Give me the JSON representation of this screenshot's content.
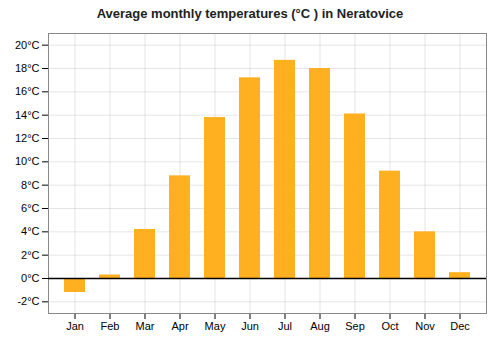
{
  "chart_data": {
    "type": "bar",
    "title": "Average monthly temperatures (°C ) in Neratovice",
    "categories": [
      "Jan",
      "Feb",
      "Mar",
      "Apr",
      "May",
      "Jun",
      "Jul",
      "Aug",
      "Sep",
      "Oct",
      "Nov",
      "Dec"
    ],
    "values": [
      -1.2,
      0.3,
      4.2,
      8.8,
      13.8,
      17.2,
      18.7,
      18.0,
      14.1,
      9.2,
      4.0,
      0.5
    ],
    "color": "#FFB020",
    "ylim": [
      -3,
      21
    ],
    "yticks": [
      {
        "value": -2,
        "label": "-2°C"
      },
      {
        "value": 0,
        "label": "0°C"
      },
      {
        "value": 2,
        "label": "2°C"
      },
      {
        "value": 4,
        "label": "4°C"
      },
      {
        "value": 6,
        "label": "6°C"
      },
      {
        "value": 8,
        "label": "8°C"
      },
      {
        "value": 10,
        "label": "10°C"
      },
      {
        "value": 12,
        "label": "12°C"
      },
      {
        "value": 14,
        "label": "14°C"
      },
      {
        "value": 16,
        "label": "16°C"
      },
      {
        "value": 18,
        "label": "18°C"
      },
      {
        "value": 20,
        "label": "20°C"
      }
    ],
    "grid": true
  }
}
